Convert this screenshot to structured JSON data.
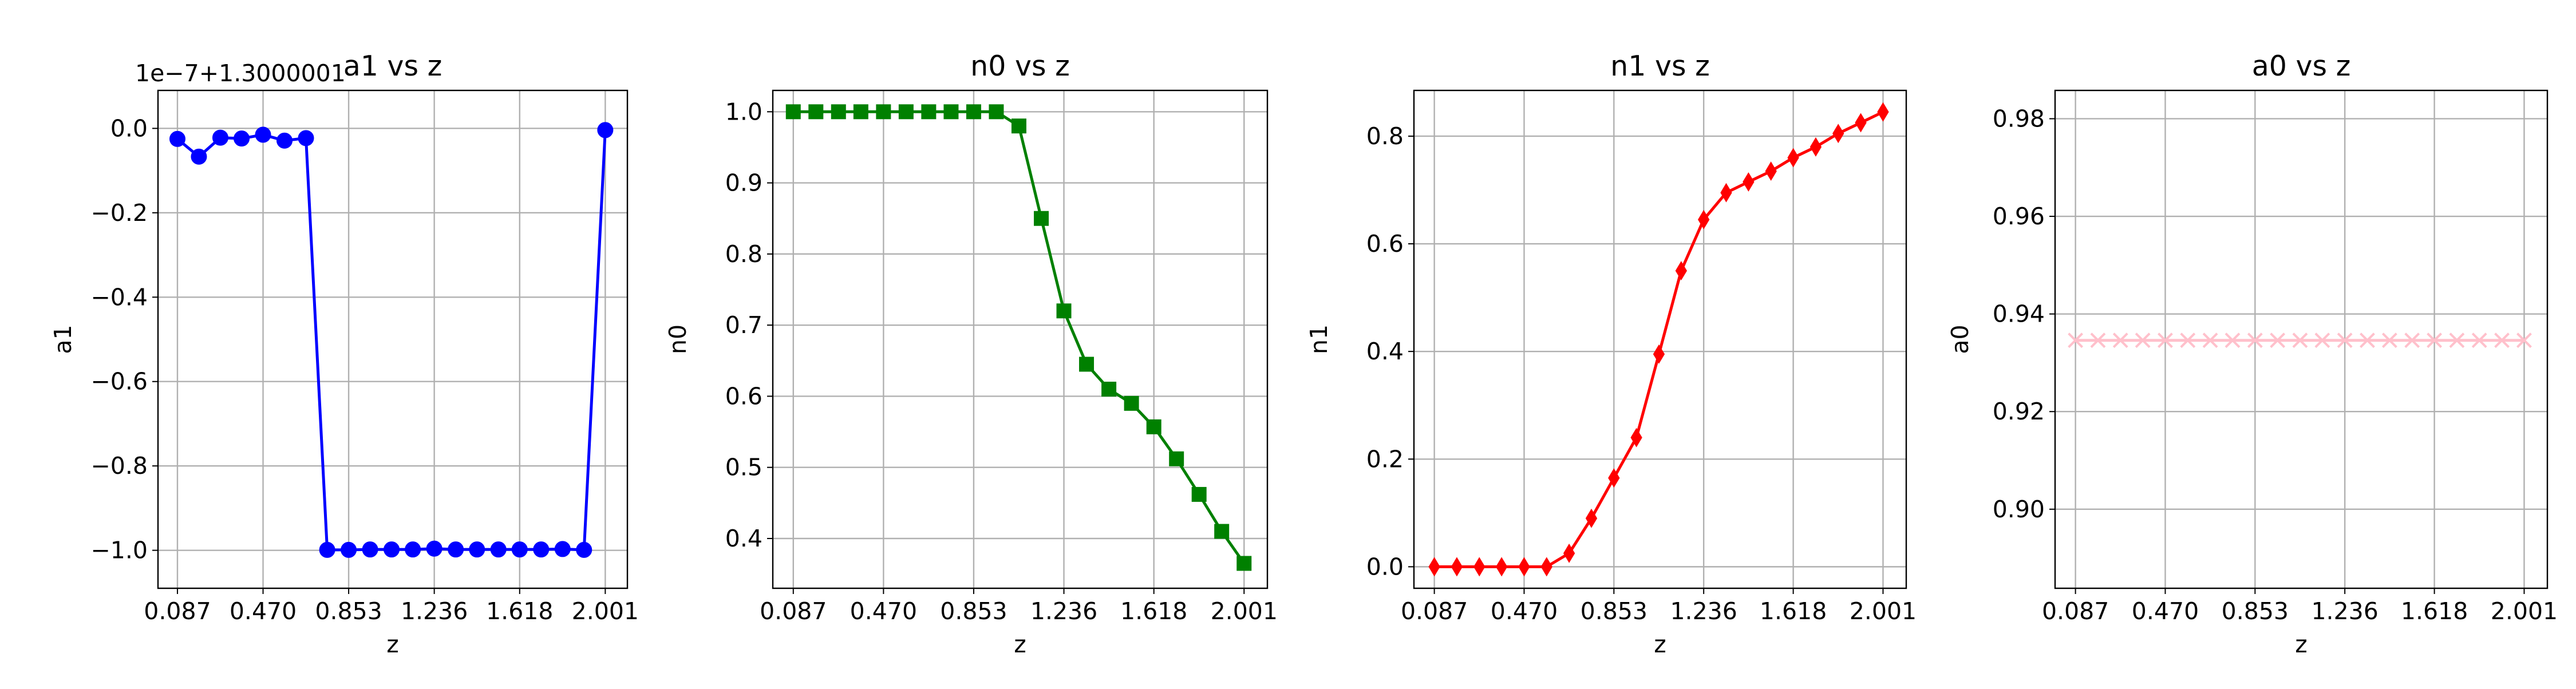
{
  "chart_data": [
    {
      "type": "line",
      "title": "a1 vs z",
      "xlabel": "z",
      "ylabel": "a1",
      "offset_text": "1e−7+1.3000001",
      "xlim": [
        0.0,
        2.1
      ],
      "ylim": [
        -1.09,
        0.09
      ],
      "xticks": [
        0.087,
        0.47,
        0.853,
        1.236,
        1.618,
        2.001
      ],
      "xtick_labels": [
        "0.087",
        "0.470",
        "0.853",
        "1.236",
        "1.618",
        "2.001"
      ],
      "yticks": [
        0.0,
        -0.2,
        -0.4,
        -0.6,
        -0.8,
        -1.0
      ],
      "ytick_labels": [
        "0.0",
        "−0.2",
        "−0.4",
        "−0.6",
        "−0.8",
        "−1.0"
      ],
      "grid": true,
      "series": [
        {
          "color": "#0000ff",
          "marker": "circle",
          "x": [
            0.087,
            0.183,
            0.279,
            0.374,
            0.47,
            0.566,
            0.662,
            0.757,
            0.853,
            0.949,
            1.045,
            1.14,
            1.236,
            1.332,
            1.427,
            1.523,
            1.618,
            1.714,
            1.81,
            1.906,
            2.001
          ],
          "y": [
            -0.025,
            -0.067,
            -0.022,
            -0.024,
            -0.015,
            -0.029,
            -0.023,
            -0.999,
            -0.999,
            -0.998,
            -0.998,
            -0.998,
            -0.996,
            -0.998,
            -0.998,
            -0.998,
            -0.998,
            -0.998,
            -0.997,
            -0.999,
            -0.004
          ]
        }
      ]
    },
    {
      "type": "line",
      "title": "n0 vs z",
      "xlabel": "z",
      "ylabel": "n0",
      "xlim": [
        0.0,
        2.1
      ],
      "ylim": [
        0.33,
        1.03
      ],
      "xticks": [
        0.087,
        0.47,
        0.853,
        1.236,
        1.618,
        2.001
      ],
      "xtick_labels": [
        "0.087",
        "0.470",
        "0.853",
        "1.236",
        "1.618",
        "2.001"
      ],
      "yticks": [
        0.4,
        0.5,
        0.6,
        0.7,
        0.8,
        0.9,
        1.0
      ],
      "ytick_labels": [
        "0.4",
        "0.5",
        "0.6",
        "0.7",
        "0.8",
        "0.9",
        "1.0"
      ],
      "grid": true,
      "series": [
        {
          "color": "#008000",
          "marker": "square",
          "x": [
            0.087,
            0.183,
            0.279,
            0.374,
            0.47,
            0.566,
            0.662,
            0.757,
            0.853,
            0.949,
            1.045,
            1.14,
            1.236,
            1.332,
            1.427,
            1.523,
            1.618,
            1.714,
            1.81,
            1.906,
            2.001
          ],
          "y": [
            1.0,
            1.0,
            1.0,
            1.0,
            1.0,
            1.0,
            1.0,
            1.0,
            1.0,
            1.0,
            0.98,
            0.85,
            0.72,
            0.645,
            0.61,
            0.59,
            0.557,
            0.512,
            0.462,
            0.41,
            0.365
          ]
        }
      ]
    },
    {
      "type": "line",
      "title": "n1 vs z",
      "xlabel": "z",
      "ylabel": "n1",
      "xlim": [
        0.0,
        2.1
      ],
      "ylim": [
        -0.04,
        0.885
      ],
      "xticks": [
        0.087,
        0.47,
        0.853,
        1.236,
        1.618,
        2.001
      ],
      "xtick_labels": [
        "0.087",
        "0.470",
        "0.853",
        "1.236",
        "1.618",
        "2.001"
      ],
      "yticks": [
        0.0,
        0.2,
        0.4,
        0.6,
        0.8
      ],
      "ytick_labels": [
        "0.0",
        "0.2",
        "0.4",
        "0.6",
        "0.8"
      ],
      "grid": true,
      "series": [
        {
          "color": "#ff0000",
          "marker": "thin_diamond",
          "x": [
            0.087,
            0.183,
            0.279,
            0.374,
            0.47,
            0.566,
            0.662,
            0.757,
            0.853,
            0.949,
            1.045,
            1.14,
            1.236,
            1.332,
            1.427,
            1.523,
            1.618,
            1.714,
            1.81,
            1.906,
            2.001
          ],
          "y": [
            0.0,
            0.0,
            0.0,
            0.0,
            0.0,
            0.0,
            0.025,
            0.09,
            0.165,
            0.24,
            0.395,
            0.55,
            0.645,
            0.695,
            0.715,
            0.735,
            0.76,
            0.78,
            0.805,
            0.825,
            0.845
          ]
        }
      ]
    },
    {
      "type": "line",
      "title": "a0 vs z",
      "xlabel": "z",
      "ylabel": "a0",
      "xlim": [
        0.0,
        2.1
      ],
      "ylim": [
        0.8838,
        0.9858
      ],
      "xticks": [
        0.087,
        0.47,
        0.853,
        1.236,
        1.618,
        2.001
      ],
      "xtick_labels": [
        "0.087",
        "0.470",
        "0.853",
        "1.236",
        "1.618",
        "2.001"
      ],
      "yticks": [
        0.9,
        0.92,
        0.94,
        0.96,
        0.98
      ],
      "ytick_labels": [
        "0.90",
        "0.92",
        "0.94",
        "0.96",
        "0.98"
      ],
      "grid": true,
      "series": [
        {
          "color": "#ffc0cb",
          "marker": "x",
          "x": [
            0.087,
            0.183,
            0.279,
            0.374,
            0.47,
            0.566,
            0.662,
            0.757,
            0.853,
            0.949,
            1.045,
            1.14,
            1.236,
            1.332,
            1.427,
            1.523,
            1.618,
            1.714,
            1.81,
            1.906,
            2.001
          ],
          "y": [
            0.9346,
            0.9346,
            0.9346,
            0.9346,
            0.9346,
            0.9346,
            0.9346,
            0.9346,
            0.9346,
            0.9346,
            0.9346,
            0.9346,
            0.9346,
            0.9346,
            0.9346,
            0.9346,
            0.9346,
            0.9346,
            0.9346,
            0.9346,
            0.9346
          ]
        }
      ]
    }
  ]
}
